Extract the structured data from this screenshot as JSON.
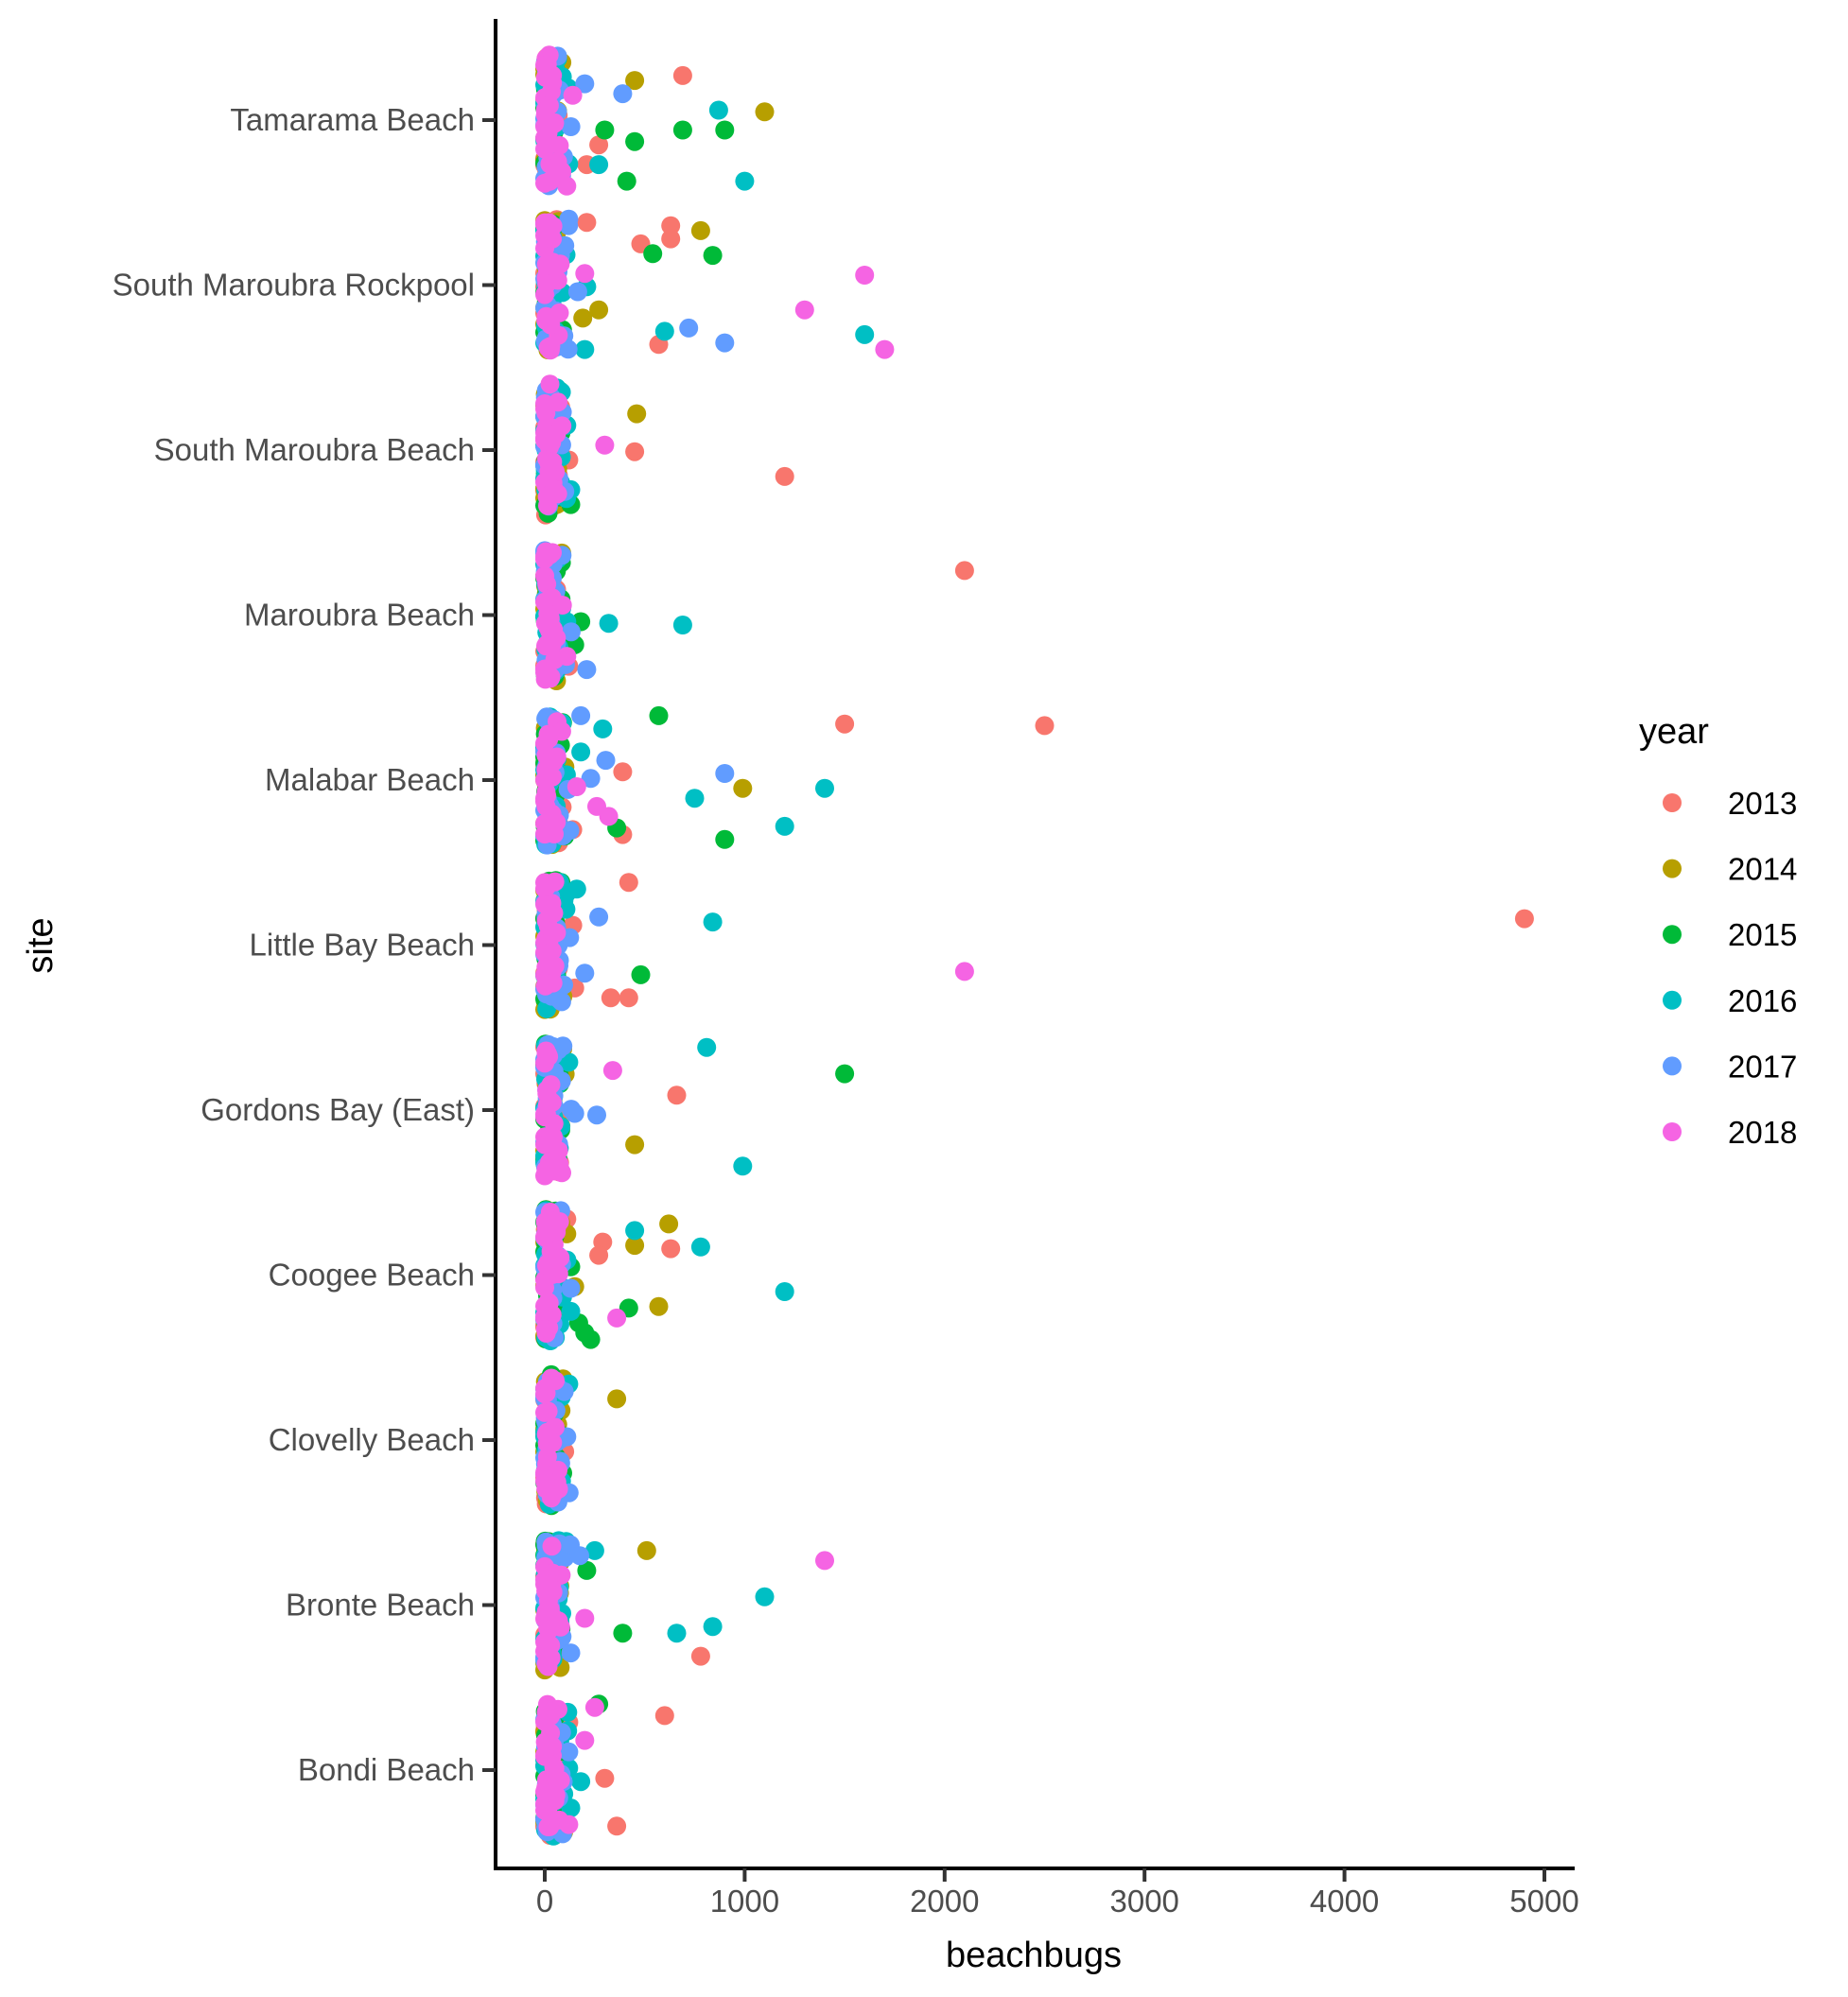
{
  "chart_data": {
    "type": "scatter",
    "title": "",
    "xlabel": "beachbugs",
    "ylabel": "site",
    "xlim": [
      -250,
      5300
    ],
    "x_ticks": [
      0,
      1000,
      2000,
      3000,
      4000,
      5000
    ],
    "x_tick_labels": [
      "0",
      "1000",
      "2000",
      "3000",
      "4000",
      "5000"
    ],
    "grid": false,
    "categories": [
      "Tamarama Beach",
      "South Maroubra Rockpool",
      "South Maroubra Beach",
      "Maroubra Beach",
      "Malabar Beach",
      "Little Bay Beach",
      "Gordons Bay (East)",
      "Coogee Beach",
      "Clovelly Beach",
      "Bronte Beach",
      "Bondi Beach"
    ],
    "legend": {
      "title": "year",
      "placement": "right",
      "entries": [
        {
          "label": "2013",
          "color": "#F8766D"
        },
        {
          "label": "2014",
          "color": "#B79F00"
        },
        {
          "label": "2015",
          "color": "#00BA38"
        },
        {
          "label": "2016",
          "color": "#00BFC4"
        },
        {
          "label": "2017",
          "color": "#619CFF"
        },
        {
          "label": "2018",
          "color": "#F564E3"
        }
      ]
    },
    "jitter_note": "jitter is vertical offset within category in category units (+ up)",
    "cluster_low_values": {
      "2013": [
        0,
        5,
        10,
        20,
        30,
        40,
        50,
        60
      ],
      "2014": [
        0,
        5,
        10,
        20,
        30,
        45,
        60,
        70
      ],
      "2015": [
        0,
        5,
        10,
        15,
        25,
        40,
        55,
        65
      ],
      "2016": [
        0,
        5,
        10,
        20,
        30,
        45,
        60,
        80
      ],
      "2017": [
        0,
        5,
        10,
        20,
        35,
        50,
        70,
        90
      ],
      "2018": [
        0,
        0,
        5,
        10,
        15,
        20,
        30,
        40,
        50,
        60
      ]
    },
    "series": [
      {
        "site": "Tamarama Beach",
        "points": [
          {
            "year": "2017",
            "value": 200,
            "jitter": 0.22
          },
          {
            "year": "2014",
            "value": 450,
            "jitter": 0.24
          },
          {
            "year": "2013",
            "value": 690,
            "jitter": 0.27
          },
          {
            "year": "2017",
            "value": 390,
            "jitter": 0.16
          },
          {
            "year": "2018",
            "value": 140,
            "jitter": 0.15
          },
          {
            "year": "2016",
            "value": 870,
            "jitter": 0.06
          },
          {
            "year": "2014",
            "value": 1100,
            "jitter": 0.05
          },
          {
            "year": "2015",
            "value": 300,
            "jitter": -0.06
          },
          {
            "year": "2015",
            "value": 450,
            "jitter": -0.13
          },
          {
            "year": "2015",
            "value": 690,
            "jitter": -0.06
          },
          {
            "year": "2015",
            "value": 900,
            "jitter": -0.06
          },
          {
            "year": "2013",
            "value": 270,
            "jitter": -0.15
          },
          {
            "year": "2013",
            "value": 210,
            "jitter": -0.27
          },
          {
            "year": "2016",
            "value": 270,
            "jitter": -0.27
          },
          {
            "year": "2015",
            "value": 410,
            "jitter": -0.37
          },
          {
            "year": "2016",
            "value": 1000,
            "jitter": -0.37
          },
          {
            "year": "2018",
            "value": 110,
            "jitter": -0.4
          }
        ]
      },
      {
        "site": "South Maroubra Rockpool",
        "points": [
          {
            "year": "2017",
            "value": 120,
            "jitter": 0.4
          },
          {
            "year": "2013",
            "value": 210,
            "jitter": 0.38
          },
          {
            "year": "2013",
            "value": 630,
            "jitter": 0.36
          },
          {
            "year": "2014",
            "value": 780,
            "jitter": 0.33
          },
          {
            "year": "2013",
            "value": 630,
            "jitter": 0.28
          },
          {
            "year": "2013",
            "value": 480,
            "jitter": 0.25
          },
          {
            "year": "2015",
            "value": 540,
            "jitter": 0.19
          },
          {
            "year": "2015",
            "value": 840,
            "jitter": 0.18
          },
          {
            "year": "2018",
            "value": 200,
            "jitter": 0.07
          },
          {
            "year": "2018",
            "value": 1600,
            "jitter": 0.06
          },
          {
            "year": "2016",
            "value": 210,
            "jitter": -0.01
          },
          {
            "year": "2017",
            "value": 165,
            "jitter": -0.04
          },
          {
            "year": "2014",
            "value": 270,
            "jitter": -0.15
          },
          {
            "year": "2018",
            "value": 1300,
            "jitter": -0.15
          },
          {
            "year": "2014",
            "value": 190,
            "jitter": -0.2
          },
          {
            "year": "2017",
            "value": 720,
            "jitter": -0.26
          },
          {
            "year": "2016",
            "value": 600,
            "jitter": -0.28
          },
          {
            "year": "2016",
            "value": 1600,
            "jitter": -0.3
          },
          {
            "year": "2017",
            "value": 900,
            "jitter": -0.35
          },
          {
            "year": "2013",
            "value": 570,
            "jitter": -0.36
          },
          {
            "year": "2016",
            "value": 200,
            "jitter": -0.39
          },
          {
            "year": "2018",
            "value": 1700,
            "jitter": -0.39
          }
        ]
      },
      {
        "site": "South Maroubra Beach",
        "points": [
          {
            "year": "2013",
            "value": 80,
            "jitter": 0.26
          },
          {
            "year": "2014",
            "value": 460,
            "jitter": 0.22
          },
          {
            "year": "2016",
            "value": 110,
            "jitter": 0.15
          },
          {
            "year": "2018",
            "value": 300,
            "jitter": 0.03
          },
          {
            "year": "2013",
            "value": 450,
            "jitter": -0.01
          },
          {
            "year": "2013",
            "value": 120,
            "jitter": -0.06
          },
          {
            "year": "2013",
            "value": 1200,
            "jitter": -0.16
          },
          {
            "year": "2016",
            "value": 130,
            "jitter": -0.24
          },
          {
            "year": "2015",
            "value": 130,
            "jitter": -0.33
          }
        ]
      },
      {
        "site": "Maroubra Beach",
        "points": [
          {
            "year": "2016",
            "value": 65,
            "jitter": 0.34
          },
          {
            "year": "2013",
            "value": 2100,
            "jitter": 0.27
          },
          {
            "year": "2016",
            "value": 110,
            "jitter": -0.04
          },
          {
            "year": "2015",
            "value": 180,
            "jitter": -0.04
          },
          {
            "year": "2016",
            "value": 320,
            "jitter": -0.05
          },
          {
            "year": "2016",
            "value": 690,
            "jitter": -0.06
          },
          {
            "year": "2015",
            "value": 150,
            "jitter": -0.18
          },
          {
            "year": "2018",
            "value": 110,
            "jitter": -0.25
          },
          {
            "year": "2013",
            "value": 120,
            "jitter": -0.31
          },
          {
            "year": "2017",
            "value": 210,
            "jitter": -0.33
          }
        ]
      },
      {
        "site": "Malabar Beach",
        "points": [
          {
            "year": "2017",
            "value": 180,
            "jitter": 0.39
          },
          {
            "year": "2015",
            "value": 570,
            "jitter": 0.39
          },
          {
            "year": "2013",
            "value": 1500,
            "jitter": 0.34
          },
          {
            "year": "2013",
            "value": 2500,
            "jitter": 0.33
          },
          {
            "year": "2016",
            "value": 290,
            "jitter": 0.31
          },
          {
            "year": "2016",
            "value": 180,
            "jitter": 0.17
          },
          {
            "year": "2017",
            "value": 305,
            "jitter": 0.12
          },
          {
            "year": "2013",
            "value": 390,
            "jitter": 0.05
          },
          {
            "year": "2017",
            "value": 900,
            "jitter": 0.04
          },
          {
            "year": "2017",
            "value": 230,
            "jitter": 0.01
          },
          {
            "year": "2018",
            "value": 160,
            "jitter": -0.04
          },
          {
            "year": "2014",
            "value": 990,
            "jitter": -0.05
          },
          {
            "year": "2016",
            "value": 1400,
            "jitter": -0.05
          },
          {
            "year": "2016",
            "value": 750,
            "jitter": -0.11
          },
          {
            "year": "2018",
            "value": 260,
            "jitter": -0.16
          },
          {
            "year": "2018",
            "value": 320,
            "jitter": -0.22
          },
          {
            "year": "2016",
            "value": 1200,
            "jitter": -0.28
          },
          {
            "year": "2015",
            "value": 360,
            "jitter": -0.29
          },
          {
            "year": "2013",
            "value": 140,
            "jitter": -0.3
          },
          {
            "year": "2013",
            "value": 390,
            "jitter": -0.33
          },
          {
            "year": "2015",
            "value": 100,
            "jitter": -0.34
          },
          {
            "year": "2015",
            "value": 900,
            "jitter": -0.36
          }
        ]
      },
      {
        "site": "Little Bay Beach",
        "points": [
          {
            "year": "2013",
            "value": 420,
            "jitter": 0.38
          },
          {
            "year": "2016",
            "value": 160,
            "jitter": 0.34
          },
          {
            "year": "2017",
            "value": 270,
            "jitter": 0.17
          },
          {
            "year": "2016",
            "value": 840,
            "jitter": 0.14
          },
          {
            "year": "2013",
            "value": 4900,
            "jitter": 0.16
          },
          {
            "year": "2013",
            "value": 140,
            "jitter": 0.12
          },
          {
            "year": "2018",
            "value": 2100,
            "jitter": -0.16
          },
          {
            "year": "2017",
            "value": 200,
            "jitter": -0.17
          },
          {
            "year": "2015",
            "value": 480,
            "jitter": -0.18
          },
          {
            "year": "2013",
            "value": 150,
            "jitter": -0.26
          },
          {
            "year": "2013",
            "value": 330,
            "jitter": -0.32
          },
          {
            "year": "2013",
            "value": 420,
            "jitter": -0.32
          },
          {
            "year": "2016",
            "value": 70,
            "jitter": -0.32
          }
        ]
      },
      {
        "site": "Gordons Bay (East)",
        "points": [
          {
            "year": "2016",
            "value": 810,
            "jitter": 0.38
          },
          {
            "year": "2014",
            "value": 90,
            "jitter": 0.37
          },
          {
            "year": "2016",
            "value": 120,
            "jitter": 0.29
          },
          {
            "year": "2018",
            "value": 340,
            "jitter": 0.24
          },
          {
            "year": "2015",
            "value": 1500,
            "jitter": 0.22
          },
          {
            "year": "2013",
            "value": 660,
            "jitter": 0.09
          },
          {
            "year": "2017",
            "value": 150,
            "jitter": -0.02
          },
          {
            "year": "2017",
            "value": 260,
            "jitter": -0.03
          },
          {
            "year": "2015",
            "value": 80,
            "jitter": -0.12
          },
          {
            "year": "2014",
            "value": 450,
            "jitter": -0.21
          },
          {
            "year": "2016",
            "value": 990,
            "jitter": -0.34
          }
        ]
      },
      {
        "site": "Coogee Beach",
        "points": [
          {
            "year": "2017",
            "value": 80,
            "jitter": 0.39
          },
          {
            "year": "2013",
            "value": 110,
            "jitter": 0.34
          },
          {
            "year": "2014",
            "value": 620,
            "jitter": 0.31
          },
          {
            "year": "2016",
            "value": 450,
            "jitter": 0.27
          },
          {
            "year": "2014",
            "value": 110,
            "jitter": 0.25
          },
          {
            "year": "2013",
            "value": 290,
            "jitter": 0.2
          },
          {
            "year": "2014",
            "value": 450,
            "jitter": 0.18
          },
          {
            "year": "2016",
            "value": 780,
            "jitter": 0.17
          },
          {
            "year": "2013",
            "value": 630,
            "jitter": 0.16
          },
          {
            "year": "2013",
            "value": 270,
            "jitter": 0.12
          },
          {
            "year": "2015",
            "value": 130,
            "jitter": 0.05
          },
          {
            "year": "2014",
            "value": 150,
            "jitter": -0.07
          },
          {
            "year": "2017",
            "value": 130,
            "jitter": -0.08
          },
          {
            "year": "2016",
            "value": 1200,
            "jitter": -0.1
          },
          {
            "year": "2014",
            "value": 570,
            "jitter": -0.19
          },
          {
            "year": "2015",
            "value": 420,
            "jitter": -0.2
          },
          {
            "year": "2016",
            "value": 130,
            "jitter": -0.22
          },
          {
            "year": "2018",
            "value": 360,
            "jitter": -0.26
          },
          {
            "year": "2015",
            "value": 170,
            "jitter": -0.29
          },
          {
            "year": "2015",
            "value": 200,
            "jitter": -0.35
          },
          {
            "year": "2015",
            "value": 230,
            "jitter": -0.39
          }
        ]
      },
      {
        "site": "Clovelly Beach",
        "points": [
          {
            "year": "2016",
            "value": 120,
            "jitter": 0.34
          },
          {
            "year": "2014",
            "value": 360,
            "jitter": 0.25
          },
          {
            "year": "2017",
            "value": 110,
            "jitter": 0.02
          },
          {
            "year": "2013",
            "value": 100,
            "jitter": -0.07
          },
          {
            "year": "2017",
            "value": 80,
            "jitter": -0.14
          },
          {
            "year": "2015",
            "value": 90,
            "jitter": -0.2
          },
          {
            "year": "2013",
            "value": 80,
            "jitter": -0.31
          }
        ]
      },
      {
        "site": "Bronte Beach",
        "points": [
          {
            "year": "2016",
            "value": 70,
            "jitter": 0.39
          },
          {
            "year": "2016",
            "value": 250,
            "jitter": 0.33
          },
          {
            "year": "2014",
            "value": 510,
            "jitter": 0.33
          },
          {
            "year": "2017",
            "value": 175,
            "jitter": 0.3
          },
          {
            "year": "2018",
            "value": 1400,
            "jitter": 0.27
          },
          {
            "year": "2015",
            "value": 210,
            "jitter": 0.21
          },
          {
            "year": "2016",
            "value": 1100,
            "jitter": 0.05
          },
          {
            "year": "2018",
            "value": 200,
            "jitter": -0.08
          },
          {
            "year": "2016",
            "value": 840,
            "jitter": -0.13
          },
          {
            "year": "2015",
            "value": 390,
            "jitter": -0.17
          },
          {
            "year": "2016",
            "value": 660,
            "jitter": -0.17
          },
          {
            "year": "2017",
            "value": 130,
            "jitter": -0.29
          },
          {
            "year": "2013",
            "value": 780,
            "jitter": -0.31
          }
        ]
      },
      {
        "site": "Bondi Beach",
        "points": [
          {
            "year": "2015",
            "value": 270,
            "jitter": 0.4
          },
          {
            "year": "2018",
            "value": 250,
            "jitter": 0.38
          },
          {
            "year": "2016",
            "value": 115,
            "jitter": 0.35
          },
          {
            "year": "2013",
            "value": 600,
            "jitter": 0.33
          },
          {
            "year": "2013",
            "value": 120,
            "jitter": 0.29
          },
          {
            "year": "2018",
            "value": 200,
            "jitter": 0.18
          },
          {
            "year": "2017",
            "value": 120,
            "jitter": 0.11
          },
          {
            "year": "2016",
            "value": 110,
            "jitter": 0.0
          },
          {
            "year": "2013",
            "value": 300,
            "jitter": -0.05
          },
          {
            "year": "2016",
            "value": 180,
            "jitter": -0.07
          },
          {
            "year": "2014",
            "value": 80,
            "jitter": -0.14
          },
          {
            "year": "2016",
            "value": 130,
            "jitter": -0.23
          },
          {
            "year": "2018",
            "value": 120,
            "jitter": -0.33
          },
          {
            "year": "2013",
            "value": 360,
            "jitter": -0.34
          }
        ]
      }
    ]
  }
}
